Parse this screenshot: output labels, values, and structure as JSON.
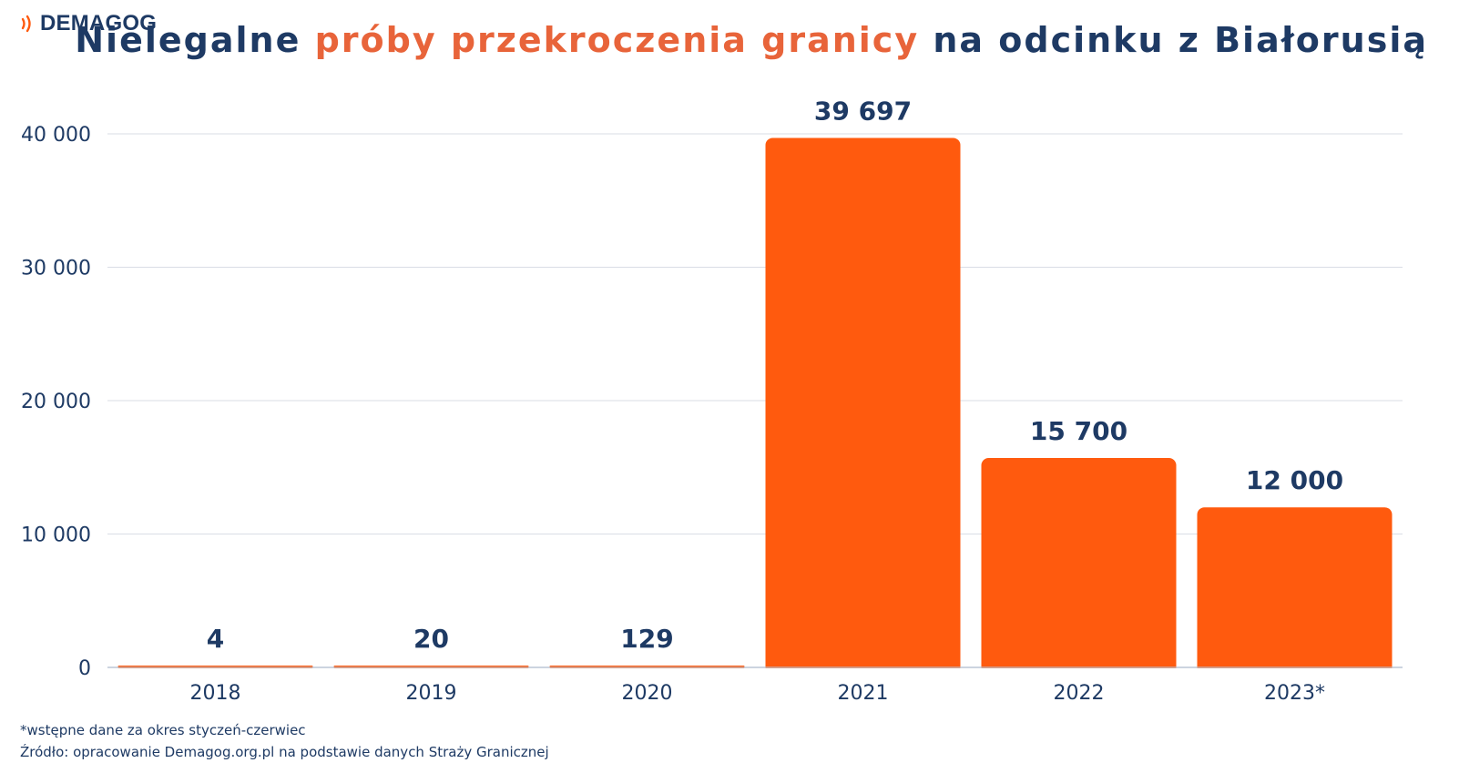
{
  "logo": {
    "text": "DEMAGOG"
  },
  "title": {
    "part1": "Nielegalne ",
    "accent": "próby przekroczenia granicy",
    "part2": " na odcinku z Białorusią"
  },
  "colors": {
    "bar": "#ff5a0e",
    "title_accent": "#e8643a",
    "text": "#1e3a64",
    "grid": "#d9dde6"
  },
  "chart_data": {
    "type": "bar",
    "categories": [
      "2018",
      "2019",
      "2020",
      "2021",
      "2022",
      "2023*"
    ],
    "values": [
      4,
      20,
      129,
      39697,
      15700,
      12000
    ],
    "value_labels": [
      "4",
      "20",
      "129",
      "39 697",
      "15 700",
      "12 000"
    ],
    "y_ticks": [
      0,
      10000,
      20000,
      30000,
      40000
    ],
    "y_tick_labels": [
      "0",
      "10 000",
      "20 000",
      "30 000",
      "40 000"
    ],
    "ylim": [
      0,
      40000
    ],
    "grid": true,
    "title": "Nielegalne próby przekroczenia granicy na odcinku z Białorusią"
  },
  "notes": {
    "footnote": "*wstępne dane za okres styczeń-czerwiec",
    "source": "Źródło: opracowanie Demagog.org.pl na podstawie danych Straży Granicznej"
  }
}
